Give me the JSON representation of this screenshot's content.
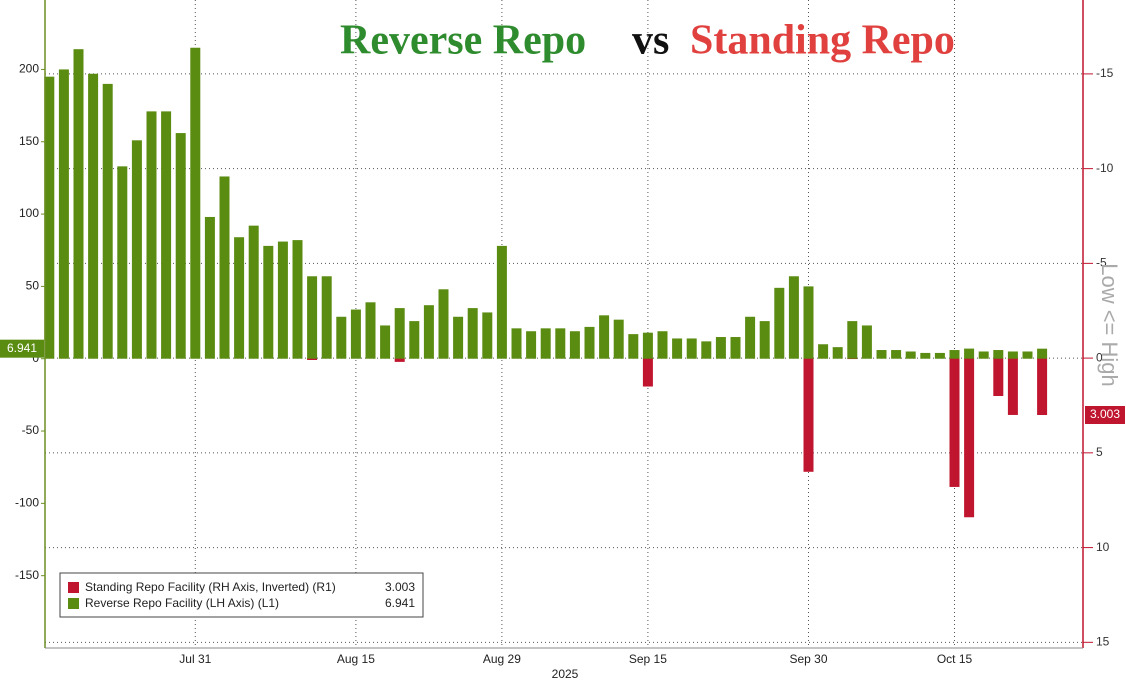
{
  "chart_data": {
    "type": "bar",
    "title_parts": [
      {
        "text": "Reverse Repo",
        "color": "#2e8b2e"
      },
      {
        "text": "vs",
        "color": "#111111"
      },
      {
        "text": "Standing Repo",
        "color": "#e0413f"
      }
    ],
    "xlabel": "2025",
    "y2label": "Low <= High",
    "categories": [
      null,
      null,
      null,
      null,
      null,
      null,
      null,
      null,
      null,
      null,
      "Jul 31",
      null,
      null,
      null,
      null,
      null,
      null,
      null,
      null,
      null,
      null,
      "Aug 15",
      null,
      null,
      null,
      null,
      null,
      null,
      null,
      null,
      null,
      "Aug 29",
      null,
      null,
      null,
      null,
      null,
      null,
      null,
      null,
      null,
      "Sep 15",
      null,
      null,
      null,
      null,
      null,
      null,
      null,
      null,
      null,
      null,
      "Sep 30",
      null,
      null,
      null,
      null,
      null,
      null,
      null,
      null,
      null,
      "Oct 15",
      null,
      null,
      null,
      null,
      null,
      null
    ],
    "series": [
      {
        "name": "Standing Repo Facility (RH Axis, Inverted) (R1)",
        "color": "#c0152f",
        "axis": "y2",
        "values": [
          0,
          0,
          0,
          0,
          0,
          0,
          0,
          0,
          0,
          0,
          0,
          0,
          0,
          0,
          0,
          0,
          0,
          0,
          0.1,
          0,
          0,
          0,
          0,
          0,
          0.2,
          0,
          0,
          0,
          0,
          0,
          0,
          0,
          0,
          0,
          0,
          0,
          0,
          0,
          0,
          0,
          0,
          1.5,
          0,
          0,
          0,
          0,
          0,
          0,
          0,
          0,
          0,
          0,
          6.0,
          0,
          0,
          0.05,
          0,
          0,
          0,
          0,
          0,
          0,
          6.8,
          8.4,
          0,
          2.0,
          3.0,
          0,
          3.003
        ]
      },
      {
        "name": "Reverse Repo Facility (LH Axis) (L1)",
        "color": "#5b8c12",
        "values": [
          195,
          200,
          214,
          197,
          190,
          133,
          151,
          171,
          171,
          156,
          215,
          98,
          126,
          84,
          92,
          78,
          81,
          82,
          57,
          57,
          29,
          34,
          39,
          23,
          35,
          26,
          37,
          48,
          29,
          35,
          32,
          78,
          21,
          19,
          21,
          21,
          19,
          22,
          30,
          27,
          17,
          18,
          19,
          14,
          14,
          12,
          15,
          15,
          29,
          26,
          49,
          57,
          50,
          10,
          8,
          26,
          23,
          6,
          6,
          5,
          4,
          4,
          6,
          7,
          5,
          6,
          5,
          5,
          6.941
        ]
      }
    ],
    "ylim": [
      -200,
      248
    ],
    "yticks": [
      -150,
      -100,
      -50,
      0,
      50,
      100,
      150,
      200
    ],
    "y2lim": [
      -18.9,
      15.3
    ],
    "y2ticks": [
      -15,
      -10,
      -5,
      0,
      5,
      10,
      15
    ],
    "y2_inverted": true,
    "grid": true
  }
}
